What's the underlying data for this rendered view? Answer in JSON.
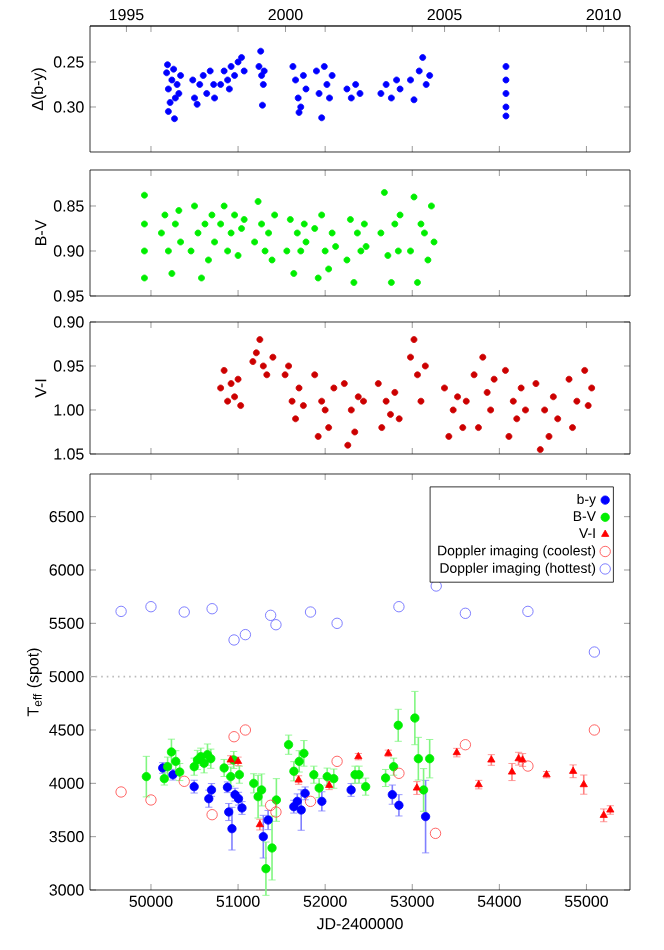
{
  "chart_data": [
    {
      "type": "scatter",
      "ylabel": "Δ(b-y)",
      "xlim": [
        49300,
        55500
      ],
      "xticks": [
        50000,
        51000,
        52000,
        53000,
        54000,
        55000
      ],
      "x2lim": [
        1993.855,
        2010.83
      ],
      "x2ticks": [
        1995,
        2000,
        2005,
        2010
      ],
      "ylim": [
        0.35,
        0.21
      ],
      "yticks": [
        0.25,
        {
          "value": 0.3,
          "label": "0.30"
        }
      ],
      "tick_labels": "y",
      "series": [
        {
          "color": "#0000ff",
          "marker": "circle",
          "x": [
            50180,
            50200,
            50220,
            50240,
            50260,
            50280,
            50300,
            50320,
            50340,
            50200,
            50270,
            50190,
            50480,
            50500,
            50530,
            50560,
            50600,
            50640,
            50680,
            50720,
            50730,
            50800,
            50840,
            50880,
            50920,
            50960,
            51000,
            51040,
            51070,
            50900,
            51240,
            51260,
            51270,
            51290,
            51300,
            51280,
            51630,
            51660,
            51690,
            51720,
            51750,
            51780,
            51700,
            51900,
            51930,
            51960,
            51990,
            52020,
            52050,
            52080,
            52250,
            52300,
            52350,
            52400,
            52640,
            52700,
            52760,
            52820,
            52860,
            52980,
            53020,
            53080,
            53120,
            53160,
            53200,
            54076,
            54076,
            54076,
            54076,
            54076
          ],
          "values": [
            0.262,
            0.28,
            0.295,
            0.27,
            0.258,
            0.29,
            0.275,
            0.285,
            0.265,
            0.305,
            0.313,
            0.253,
            0.27,
            0.29,
            0.297,
            0.275,
            0.265,
            0.285,
            0.26,
            0.275,
            0.29,
            0.275,
            0.26,
            0.27,
            0.255,
            0.265,
            0.25,
            0.245,
            0.26,
            0.28,
            0.255,
            0.238,
            0.265,
            0.275,
            0.26,
            0.298,
            0.255,
            0.27,
            0.29,
            0.3,
            0.265,
            0.28,
            0.306,
            0.26,
            0.285,
            0.312,
            0.255,
            0.275,
            0.29,
            0.265,
            0.28,
            0.29,
            0.275,
            0.285,
            0.285,
            0.275,
            0.29,
            0.27,
            0.28,
            0.27,
            0.292,
            0.26,
            0.245,
            0.275,
            0.265,
            0.255,
            0.27,
            0.285,
            0.3,
            0.31
          ]
        }
      ]
    },
    {
      "type": "scatter",
      "ylabel": "B-V",
      "xlim": [
        49300,
        55500
      ],
      "xticks": [
        50000,
        51000,
        52000,
        53000,
        54000,
        55000
      ],
      "ylim": [
        0.95,
        0.81
      ],
      "yticks": [
        0.85,
        {
          "value": 0.9,
          "label": "0.90"
        },
        0.95
      ],
      "tick_labels": "y",
      "series": [
        {
          "color": "#00ee00",
          "marker": "circle",
          "x": [
            49925,
            49925,
            49925,
            49925,
            50120,
            50160,
            50200,
            50240,
            50280,
            50320,
            50340,
            50460,
            50500,
            50540,
            50580,
            50620,
            50660,
            50700,
            50730,
            50800,
            50840,
            50880,
            50920,
            50960,
            51000,
            51040,
            51070,
            51190,
            51230,
            51270,
            51310,
            51350,
            51390,
            51420,
            51560,
            51600,
            51640,
            51680,
            51720,
            51760,
            51780,
            51880,
            51920,
            51960,
            52000,
            52040,
            52080,
            52120,
            52250,
            52290,
            52330,
            52370,
            52410,
            52450,
            52470,
            52640,
            52680,
            52720,
            52760,
            52800,
            52840,
            52860,
            52980,
            53020,
            53060,
            53100,
            53140,
            53180,
            53220,
            53250
          ],
          "values": [
            0.838,
            0.87,
            0.9,
            0.93,
            0.88,
            0.86,
            0.9,
            0.925,
            0.87,
            0.855,
            0.89,
            0.9,
            0.85,
            0.88,
            0.93,
            0.87,
            0.91,
            0.86,
            0.89,
            0.87,
            0.85,
            0.9,
            0.88,
            0.86,
            0.905,
            0.875,
            0.865,
            0.89,
            0.845,
            0.87,
            0.9,
            0.88,
            0.91,
            0.86,
            0.9,
            0.865,
            0.925,
            0.88,
            0.9,
            0.87,
            0.89,
            0.875,
            0.93,
            0.86,
            0.9,
            0.92,
            0.88,
            0.895,
            0.91,
            0.865,
            0.935,
            0.88,
            0.9,
            0.87,
            0.895,
            0.88,
            0.835,
            0.905,
            0.935,
            0.87,
            0.9,
            0.86,
            0.9,
            0.84,
            0.935,
            0.87,
            0.88,
            0.91,
            0.85,
            0.89
          ]
        }
      ]
    },
    {
      "type": "scatter",
      "ylabel": "V-I",
      "xlim": [
        49300,
        55500
      ],
      "xticks": [
        50000,
        51000,
        52000,
        53000,
        54000,
        55000
      ],
      "ylim": [
        1.05,
        0.9
      ],
      "yticks": [
        {
          "value": 0.9,
          "label": "0.90"
        },
        0.95,
        {
          "value": 1.0,
          "label": "1.00"
        },
        1.05
      ],
      "tick_labels": "y",
      "series": [
        {
          "color": "#cc0000",
          "marker": "circle",
          "x": [
            50800,
            50840,
            50880,
            50920,
            50960,
            51000,
            51030,
            51170,
            51210,
            51250,
            51290,
            51330,
            51400,
            51540,
            51580,
            51620,
            51660,
            51700,
            51750,
            51880,
            51920,
            51960,
            52000,
            52040,
            52100,
            52220,
            52260,
            52300,
            52340,
            52380,
            52440,
            52610,
            52650,
            52700,
            52750,
            52800,
            52850,
            52980,
            53020,
            53060,
            53100,
            53150,
            53370,
            53420,
            53470,
            53520,
            53580,
            53620,
            53710,
            53760,
            53810,
            53860,
            53900,
            53940,
            54070,
            54110,
            54160,
            54200,
            54250,
            54300,
            54420,
            54470,
            54520,
            54570,
            54620,
            54670,
            54800,
            54840,
            54890,
            54980,
            55020,
            55060
          ],
          "values": [
            0.975,
            0.955,
            0.99,
            0.97,
            0.985,
            0.965,
            0.995,
            0.945,
            0.935,
            0.92,
            0.95,
            0.96,
            0.94,
            0.96,
            0.95,
            0.99,
            1.01,
            0.975,
            0.995,
            0.96,
            1.03,
            0.99,
            1.0,
            1.02,
            0.975,
            0.97,
            1.04,
            1.0,
            1.025,
            0.985,
            0.99,
            0.97,
            1.02,
            0.99,
            1.005,
            0.98,
            1.01,
            0.94,
            0.92,
            0.96,
            0.99,
            0.95,
            0.975,
            1.03,
            1.0,
            0.985,
            1.02,
            0.99,
            0.96,
            1.02,
            0.94,
            0.98,
            1.0,
            0.965,
            0.955,
            1.03,
            0.99,
            1.01,
            0.975,
            1.0,
            0.97,
            1.045,
            1.0,
            1.03,
            0.985,
            1.01,
            0.965,
            1.02,
            0.99,
            0.955,
            0.995,
            0.975
          ]
        }
      ]
    },
    {
      "type": "scatter",
      "xlabel": "JD-2400000",
      "ylabel": "T$_{eff}$ (spot)",
      "xlim": [
        49300,
        55500
      ],
      "xticks": [
        50000,
        51000,
        52000,
        53000,
        54000,
        55000
      ],
      "ylim": [
        3000,
        6900
      ],
      "yticks": [
        3000,
        3500,
        4000,
        4500,
        5000,
        5500,
        6000,
        6500
      ],
      "legend": "top right",
      "ref_lines": [
        {
          "axis": "y",
          "value": 5000,
          "color": "#bbbbbb",
          "line_style": "dotted"
        }
      ],
      "series": [
        {
          "name": "b-y",
          "color": "#0000ff",
          "marker": "circle",
          "x": [
            50135,
            50252,
            50496,
            50664,
            50695,
            50878,
            50893,
            50930,
            50965,
            51005,
            51045,
            51290,
            51345,
            51640,
            51680,
            51725,
            51770,
            51962,
            52298,
            52771,
            52847,
            53153
          ],
          "values": [
            4144,
            4081,
            3969,
            3856,
            3938,
            3963,
            3731,
            3575,
            3894,
            3856,
            3769,
            3500,
            3656,
            3781,
            3831,
            3750,
            3906,
            3831,
            3938,
            3894,
            3794,
            3688
          ],
          "errors": [
            50,
            50,
            60,
            80,
            60,
            50,
            80,
            200,
            60,
            60,
            60,
            200,
            90,
            60,
            70,
            190,
            60,
            90,
            60,
            90,
            100,
            340
          ]
        },
        {
          "name": "B-V",
          "color": "#00ee00",
          "marker": "circle",
          "x": [
            49947,
            50153,
            50191,
            50235,
            50285,
            50330,
            50496,
            50534,
            50572,
            50610,
            50649,
            50687,
            50840,
            50916,
            50950,
            51015,
            51180,
            51230,
            51270,
            51320,
            51390,
            51440,
            51580,
            51641,
            51702,
            51756,
            51870,
            51931,
            52023,
            52099,
            52343,
            52389,
            52465,
            52694,
            52786,
            52839,
            53030,
            53070,
            53200,
            53130
          ],
          "values": [
            4063,
            4044,
            4156,
            4294,
            4206,
            4106,
            4156,
            4219,
            4250,
            4188,
            4269,
            4231,
            4144,
            4063,
            4219,
            4081,
            4000,
            3875,
            3938,
            3200,
            3394,
            3844,
            4362,
            4113,
            4206,
            4281,
            4081,
            3956,
            4063,
            4044,
            4081,
            4081,
            3969,
            4050,
            4156,
            4544,
            4612,
            4231,
            4231,
            3938
          ],
          "errors": [
            190,
            60,
            90,
            120,
            100,
            80,
            80,
            90,
            80,
            90,
            100,
            90,
            80,
            90,
            80,
            80,
            90,
            200,
            150,
            250,
            300,
            200,
            90,
            90,
            100,
            120,
            80,
            90,
            80,
            90,
            80,
            80,
            80,
            80,
            80,
            150,
            250,
            200,
            180,
            200
          ]
        },
        {
          "name": "V-I",
          "color": "#ff0000",
          "marker": "triangle",
          "x": [
            50915,
            51000,
            51250,
            51695,
            52046,
            52381,
            52725,
            53053,
            53511,
            53908,
            53763,
            54145,
            54221,
            54267,
            54542,
            54847,
            54969,
            55198,
            55274
          ],
          "values": [
            4219,
            4206,
            3613,
            4031,
            3981,
            4250,
            4281,
            3956,
            4288,
            4219,
            3988,
            4106,
            4231,
            4219,
            4081,
            4113,
            3988,
            3700,
            3750
          ],
          "errors": [
            40,
            40,
            50,
            40,
            40,
            30,
            30,
            60,
            40,
            50,
            40,
            80,
            60,
            60,
            30,
            60,
            90,
            60,
            40
          ]
        },
        {
          "name": "Doppler imaging (coolest)",
          "color": "#ff4040",
          "marker": "circle",
          "x": [
            49657,
            50000,
            50382,
            50702,
            50954,
            51084,
            51374,
            51435,
            51832,
            52137,
            52847,
            53267,
            53610,
            54328,
            55091
          ],
          "values": [
            3919,
            3844,
            4019,
            3706,
            4437,
            4500,
            3794,
            3731,
            3831,
            4206,
            4094,
            3531,
            4362,
            4162,
            4500
          ]
        },
        {
          "name": "Doppler imaging (hottest)",
          "color": "#6060ff",
          "marker": "circle",
          "x": [
            49657,
            50000,
            50382,
            50702,
            50954,
            51084,
            51374,
            51435,
            51832,
            52137,
            52847,
            53275,
            53610,
            54328,
            55091
          ],
          "values": [
            5612,
            5656,
            5606,
            5637,
            5344,
            5394,
            5575,
            5487,
            5606,
            5500,
            5656,
            5850,
            5594,
            5612,
            5231
          ]
        }
      ]
    }
  ]
}
